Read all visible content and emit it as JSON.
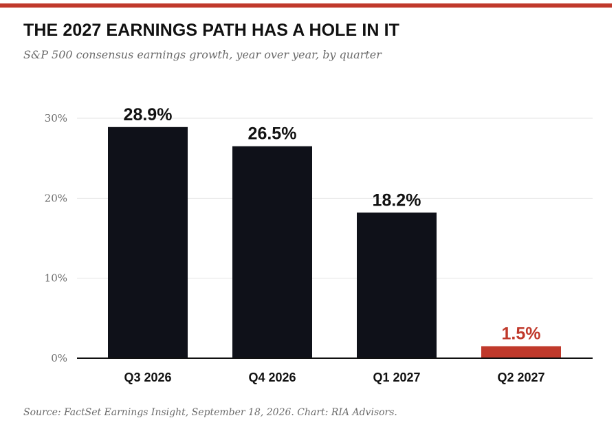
{
  "header": {
    "title": "THE 2027 EARNINGS PATH HAS A HOLE IN IT",
    "subtitle": "S&P 500 consensus earnings growth, year over year, by quarter"
  },
  "footer": {
    "source": "Source: FactSet Earnings Insight, September 18, 2026. Chart: RIA Advisors."
  },
  "colors": {
    "accent": "#c0392b",
    "bar": "#0f1119",
    "grid": "#e3e3e3",
    "axis": "#111111",
    "tick_text": "#6b6b6b"
  },
  "chart_data": {
    "type": "bar",
    "title": "THE 2027 EARNINGS PATH HAS A HOLE IN IT",
    "subtitle": "S&P 500 consensus earnings growth, year over year, by quarter",
    "categories": [
      "Q3 2026",
      "Q4 2026",
      "Q1 2027",
      "Q2 2027"
    ],
    "values": [
      28.9,
      26.5,
      18.2,
      1.5
    ],
    "data_labels": [
      "28.9%",
      "26.5%",
      "18.2%",
      "1.5%"
    ],
    "highlight_index": 3,
    "ylim": [
      0,
      30
    ],
    "yticks": [
      0,
      10,
      20,
      30
    ],
    "ytick_labels": [
      "0%",
      "10%",
      "20%",
      "30%"
    ],
    "xlabel": "",
    "ylabel": "",
    "grid": true,
    "legend": "none"
  }
}
